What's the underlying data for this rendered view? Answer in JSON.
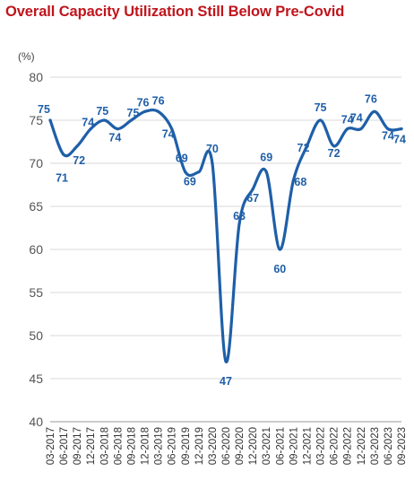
{
  "chart_data": {
    "type": "line",
    "title": "Overall Capacity Utilization Still Below Pre-Covid",
    "ylabel": "(%)",
    "xlabel": "",
    "ylim": [
      40,
      80
    ],
    "yticks": [
      40,
      45,
      50,
      55,
      60,
      65,
      70,
      75,
      80
    ],
    "grid": true,
    "legend": "none",
    "categories": [
      "03-2017",
      "06-2017",
      "09-2017",
      "12-2017",
      "03-2018",
      "06-2018",
      "09-2018",
      "12-2018",
      "03-2019",
      "06-2019",
      "09-2019",
      "12-2019",
      "03-2020",
      "06-2020",
      "09-2020",
      "12-2020",
      "03-2021",
      "06-2021",
      "09-2021",
      "12-2021",
      "03-2022",
      "06-2022",
      "09-2022",
      "12-2022",
      "03-2023",
      "06-2023",
      "09-2023"
    ],
    "series": [
      {
        "values": [
          75,
          71,
          72,
          74,
          75,
          74,
          75,
          76,
          76,
          74,
          69,
          69,
          70,
          47,
          63,
          67,
          69,
          60,
          68,
          72,
          75,
          72,
          74,
          74,
          76,
          74,
          74
        ]
      }
    ],
    "data_labels": [
      "75",
      "71",
      "72",
      "74",
      "75",
      "74",
      "75",
      "76",
      "76",
      "74",
      "69",
      "69",
      "70",
      "47",
      "63",
      "67",
      "69",
      "60",
      "68",
      "72",
      "75",
      "72",
      "74",
      "74",
      "76",
      "74",
      "74"
    ]
  },
  "colors": {
    "title": "#c0141c",
    "line": "#1f5fa8",
    "label": "#1f5fa8",
    "grid": "#d9d9d9"
  }
}
